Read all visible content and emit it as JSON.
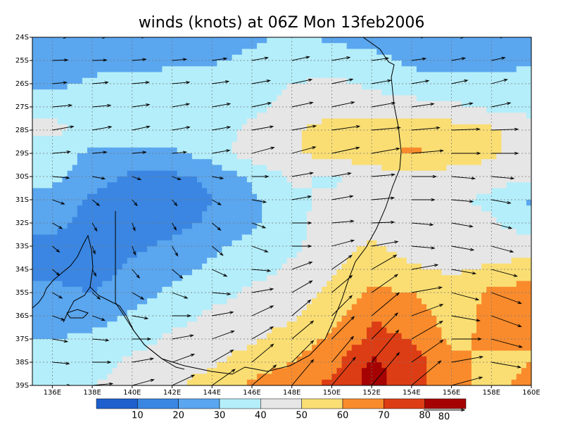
{
  "chart_data": {
    "type": "wind-map",
    "title": "winds (knots) at 06Z Mon 13feb2006",
    "xlim": [
      135,
      160
    ],
    "ylim": [
      -24,
      -39
    ],
    "xticks": [
      {
        "value": 136,
        "label": "136E"
      },
      {
        "value": 138,
        "label": "138E"
      },
      {
        "value": 140,
        "label": "140E"
      },
      {
        "value": 142,
        "label": "142E"
      },
      {
        "value": 144,
        "label": "144E"
      },
      {
        "value": 146,
        "label": "146E"
      },
      {
        "value": 148,
        "label": "148E"
      },
      {
        "value": 150,
        "label": "150E"
      },
      {
        "value": 152,
        "label": "152E"
      },
      {
        "value": 154,
        "label": "154E"
      },
      {
        "value": 156,
        "label": "156E"
      },
      {
        "value": 158,
        "label": "158E"
      },
      {
        "value": 160,
        "label": "160E"
      }
    ],
    "yticks": [
      {
        "value": -24,
        "label": "24S"
      },
      {
        "value": -25,
        "label": "25S"
      },
      {
        "value": -26,
        "label": "26S"
      },
      {
        "value": -27,
        "label": "27S"
      },
      {
        "value": -28,
        "label": "28S"
      },
      {
        "value": -29,
        "label": "29S"
      },
      {
        "value": -30,
        "label": "30S"
      },
      {
        "value": -31,
        "label": "31S"
      },
      {
        "value": -32,
        "label": "32S"
      },
      {
        "value": -33,
        "label": "33S"
      },
      {
        "value": -34,
        "label": "34S"
      },
      {
        "value": -35,
        "label": "35S"
      },
      {
        "value": -36,
        "label": "36S"
      },
      {
        "value": -37,
        "label": "37S"
      },
      {
        "value": -38,
        "label": "38S"
      },
      {
        "value": -39,
        "label": "39S"
      }
    ],
    "grid": true,
    "levels": [
      10,
      20,
      30,
      40,
      50,
      60,
      70,
      80
    ],
    "colors": [
      "#1e5fcd",
      "#3a86e2",
      "#5aa6ef",
      "#b4eefa",
      "#e6e6e6",
      "#fade73",
      "#f98b2c",
      "#dd3d14",
      "#a50303"
    ],
    "reference_vector": 80,
    "lon": [
      136,
      138,
      140,
      142,
      144,
      146,
      148,
      150,
      152,
      154,
      156,
      158,
      160
    ],
    "lat": [
      -24,
      -25,
      -26,
      -27,
      -28,
      -29,
      -30,
      -31,
      -32,
      -33,
      -34,
      -35,
      -36,
      -37,
      -38,
      -39
    ],
    "speed": [
      [
        28,
        26,
        25,
        26,
        27,
        28,
        32,
        28,
        26,
        25,
        24,
        24,
        24
      ],
      [
        30,
        28,
        27,
        28,
        29,
        32,
        35,
        36,
        33,
        28,
        27,
        27,
        28
      ],
      [
        28,
        31,
        33,
        34,
        33,
        36,
        40,
        42,
        38,
        34,
        32,
        32,
        35
      ],
      [
        38,
        36,
        34,
        34,
        36,
        38,
        42,
        45,
        46,
        44,
        42,
        38,
        36
      ],
      [
        42,
        38,
        35,
        35,
        36,
        42,
        48,
        55,
        56,
        55,
        55,
        52,
        45
      ],
      [
        35,
        28,
        27,
        28,
        35,
        45,
        48,
        55,
        55,
        62,
        56,
        52,
        45
      ],
      [
        33,
        25,
        18,
        18,
        22,
        32,
        42,
        38,
        45,
        48,
        46,
        44,
        42
      ],
      [
        25,
        18,
        15,
        15,
        20,
        28,
        38,
        42,
        44,
        45,
        42,
        38,
        28
      ],
      [
        22,
        18,
        16,
        16,
        22,
        28,
        38,
        43,
        44,
        42,
        42,
        41,
        35
      ],
      [
        18,
        16,
        18,
        22,
        28,
        33,
        38,
        45,
        52,
        45,
        44,
        44,
        45
      ],
      [
        18,
        15,
        22,
        27,
        32,
        36,
        42,
        48,
        56,
        52,
        48,
        52,
        55
      ],
      [
        22,
        20,
        26,
        32,
        36,
        42,
        46,
        52,
        62,
        60,
        55,
        62,
        65
      ],
      [
        25,
        26,
        31,
        36,
        42,
        46,
        48,
        56,
        70,
        65,
        56,
        62,
        62
      ],
      [
        30,
        32,
        36,
        42,
        46,
        48,
        55,
        62,
        72,
        70,
        58,
        62,
        60
      ],
      [
        33,
        36,
        42,
        46,
        48,
        55,
        60,
        66,
        82,
        75,
        62,
        58,
        60
      ],
      [
        35,
        40,
        44,
        48,
        55,
        62,
        66,
        72,
        84,
        75,
        62,
        58,
        62
      ]
    ],
    "direction": [
      [
        90,
        90,
        88,
        85,
        85,
        85,
        85,
        85,
        85,
        88,
        90,
        88,
        85
      ],
      [
        88,
        88,
        85,
        85,
        82,
        80,
        78,
        80,
        82,
        82,
        80,
        78,
        75
      ],
      [
        85,
        85,
        85,
        85,
        82,
        80,
        78,
        78,
        80,
        80,
        78,
        75,
        72
      ],
      [
        85,
        85,
        82,
        80,
        80,
        78,
        78,
        78,
        80,
        82,
        80,
        78,
        75
      ],
      [
        80,
        80,
        78,
        80,
        80,
        80,
        80,
        82,
        85,
        85,
        88,
        88,
        88
      ],
      [
        85,
        85,
        85,
        85,
        80,
        75,
        75,
        78,
        80,
        85,
        90,
        90,
        90
      ],
      [
        95,
        100,
        110,
        110,
        100,
        90,
        80,
        80,
        85,
        90,
        95,
        95,
        95
      ],
      [
        110,
        130,
        140,
        140,
        120,
        100,
        80,
        80,
        85,
        90,
        95,
        100,
        100
      ],
      [
        120,
        150,
        160,
        150,
        130,
        110,
        90,
        85,
        88,
        95,
        100,
        105,
        105
      ],
      [
        130,
        160,
        160,
        150,
        130,
        110,
        90,
        75,
        80,
        95,
        100,
        105,
        110
      ],
      [
        130,
        150,
        140,
        130,
        115,
        95,
        70,
        55,
        60,
        80,
        100,
        105,
        110
      ],
      [
        120,
        130,
        120,
        110,
        95,
        80,
        60,
        50,
        55,
        80,
        105,
        110,
        115
      ],
      [
        110,
        110,
        100,
        90,
        80,
        65,
        50,
        45,
        50,
        70,
        100,
        110,
        115
      ],
      [
        100,
        95,
        90,
        80,
        70,
        60,
        50,
        45,
        45,
        60,
        90,
        105,
        110
      ],
      [
        95,
        90,
        80,
        70,
        60,
        50,
        45,
        40,
        40,
        55,
        80,
        100,
        105
      ],
      [
        90,
        85,
        75,
        65,
        55,
        50,
        40,
        40,
        40,
        50,
        75,
        95,
        100
      ]
    ]
  }
}
